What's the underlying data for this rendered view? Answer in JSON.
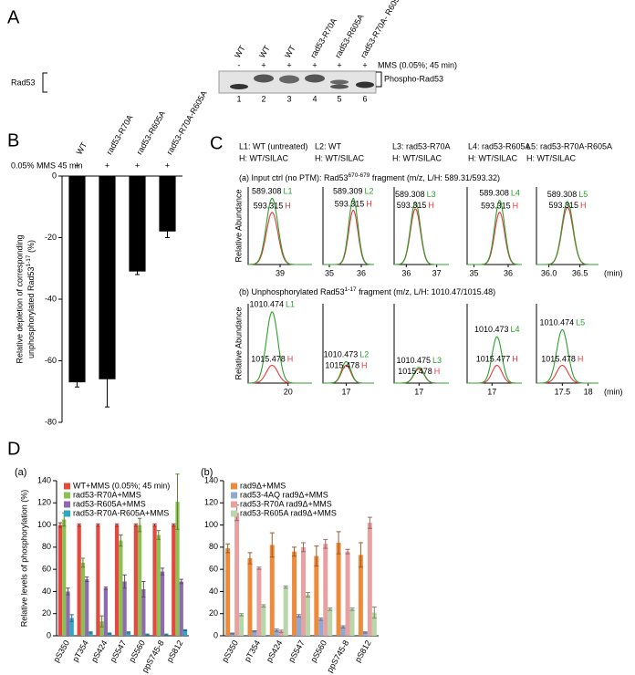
{
  "panel_a": {
    "label": "A",
    "lanes": [
      "WT",
      "WT",
      "WT",
      "rad53-R70A",
      "rad53-R605A",
      "rad53-R70A- R605A"
    ],
    "treatment": [
      "-",
      "+",
      "+",
      "+",
      "+",
      "+"
    ],
    "treatment_label": "MMS (0.05%; 45 min)",
    "lane_numbers": [
      1,
      2,
      3,
      4,
      5,
      6
    ],
    "left_label": "Rad53",
    "right_label": "Phospho-Rad53"
  },
  "panel_c": {
    "label": "C",
    "light_color": "#2ca02c",
    "heavy_color": "#e8383d",
    "legend": [
      {
        "light": "L1: WT (untreated)",
        "heavy": "H: WT/SILAC"
      },
      {
        "light": "L2: WT",
        "heavy": "H: WT/SILAC"
      },
      {
        "light": "L3: rad53-R70A",
        "heavy": "H: WT/SILAC"
      },
      {
        "light": "L4: rad53-R605A",
        "heavy": "H: WT/SILAC"
      },
      {
        "light": "L5: rad53-R70A-R605A",
        "heavy": "H: WT/SILAC"
      }
    ],
    "row_a": {
      "title": [
        "(a) Input ctrl (no PTM): Rad53",
        "670-679",
        " fragment (m/z, L/H: 589.31/593.32)"
      ],
      "ylabel": "Relative Abundance",
      "x_unit": "(min)",
      "plots": [
        {
          "xlim": [
            38.4,
            39.6
          ],
          "xticks": [
            39
          ],
          "peak_time": 38.85,
          "light_height": 95,
          "heavy_height": 75,
          "light_mz": "589.308",
          "light_tag": "L1",
          "heavy_mz": "593.315",
          "heavy_tag": "H"
        },
        {
          "xlim": [
            34.8,
            36.4
          ],
          "xticks": [
            35,
            36
          ],
          "peak_time": 35.75,
          "light_height": 95,
          "heavy_height": 78,
          "light_mz": "589.309",
          "light_tag": "L2",
          "heavy_mz": "593.315",
          "heavy_tag": "H"
        },
        {
          "xlim": [
            35.6,
            37.4
          ],
          "xticks": [
            36,
            37
          ],
          "peak_time": 36.3,
          "light_height": 90,
          "heavy_height": 80,
          "light_mz": "589.308",
          "light_tag": "L3",
          "heavy_mz": "593.315",
          "heavy_tag": "H"
        },
        {
          "xlim": [
            34.8,
            36.4
          ],
          "xticks": [
            35,
            36
          ],
          "peak_time": 35.75,
          "light_height": 92,
          "heavy_height": 75,
          "light_mz": "589.308",
          "light_tag": "L4",
          "heavy_mz": "593.315",
          "heavy_tag": "H"
        },
        {
          "xlim": [
            35.8,
            36.8
          ],
          "xticks": [
            {
              "value": 36,
              "label": "36.0"
            },
            36.5
          ],
          "peak_time": 36.3,
          "light_height": 90,
          "heavy_height": 82,
          "light_mz": "589.308",
          "light_tag": "L5",
          "heavy_mz": "593.315",
          "heavy_tag": "H"
        }
      ]
    },
    "row_b": {
      "title": [
        "(b) Unphosphorylated Rad53",
        "1-17",
        " fragment (m/z, L/H: 1010.47/1015.48)"
      ],
      "ylabel": "Relative Abundance",
      "x_unit": "(min)",
      "plots": [
        {
          "xlim": [
            19,
            20.6
          ],
          "xticks": [
            20
          ],
          "peak_time": 19.6,
          "light_height": 100,
          "heavy_height": 25,
          "light_mz": "1010.474",
          "light_tag": "L1",
          "heavy_mz": "1015.478",
          "heavy_tag": "H"
        },
        {
          "xlim": [
            16.5,
            17.6
          ],
          "xticks": [
            17
          ],
          "peak_time": 17.0,
          "light_height": 30,
          "heavy_height": 25,
          "light_mz": "1010.473",
          "light_tag": "L2",
          "heavy_mz": "1015.478",
          "heavy_tag": "H"
        },
        {
          "xlim": [
            16.5,
            17.6
          ],
          "xticks": [
            17
          ],
          "peak_time": 17.0,
          "light_height": 22,
          "heavy_height": 20,
          "light_mz": "1010.475",
          "light_tag": "L3",
          "heavy_mz": "1015.478",
          "heavy_tag": "H"
        },
        {
          "xlim": [
            16.5,
            17.6
          ],
          "xticks": [
            17
          ],
          "peak_time": 17.1,
          "light_height": 65,
          "heavy_height": 25,
          "light_mz": "1010.473",
          "light_tag": "L4",
          "heavy_mz": "1015.477",
          "heavy_tag": "H"
        },
        {
          "xlim": [
            17,
            18.2
          ],
          "xticks": [
            17.5,
            18
          ],
          "peak_time": 17.5,
          "light_height": 75,
          "heavy_height": 25,
          "light_mz": "1010.474",
          "light_tag": "L5",
          "heavy_mz": "1015.478",
          "heavy_tag": "H"
        }
      ]
    }
  },
  "chart_data": [
    {
      "type": "bar",
      "panel_label": "B",
      "categories": [
        "WT",
        "rad53-R70A",
        "rad53-R605A",
        "rad53-R70A-R605A"
      ],
      "treatment_label": "0.05% MMS 45 min",
      "treatment": [
        "+",
        "+",
        "+",
        "+"
      ],
      "values": [
        -67,
        -66,
        -31,
        -18
      ],
      "errors": [
        1.5,
        9,
        1,
        2
      ],
      "color": "#000000",
      "ylim": [
        -80,
        0
      ],
      "yticks": [
        0,
        -20,
        -40,
        -60,
        -80
      ],
      "ylabel": [
        "Relative depletion of corresponding",
        "unphosphorylated Rad53",
        "1-17",
        " (%)"
      ]
    },
    {
      "type": "bar",
      "panel_label": "D",
      "subpanel_label": "(a)",
      "ylabel": "Relative levels of phosphorylation (%)",
      "categories": [
        "pS350",
        "pT354",
        "pS424",
        "pS547",
        "pS560",
        "ppS745-8",
        "pS812"
      ],
      "ylim": [
        0,
        140
      ],
      "yticks": [
        0,
        20,
        40,
        60,
        80,
        100,
        120,
        140
      ],
      "series": [
        {
          "name": "WT+MMS (0.05%; 45 min)",
          "color": "#e5483e",
          "values": [
            100,
            100,
            100,
            100,
            100,
            100,
            100
          ],
          "errors": [
            2,
            1,
            1,
            1,
            1,
            1,
            1
          ]
        },
        {
          "name": "rad53-R70A+MMS",
          "color": "#8cc152",
          "values": [
            105,
            66,
            13,
            86,
            100,
            91,
            121
          ],
          "errors": [
            6,
            4,
            5,
            5,
            6,
            4,
            25
          ]
        },
        {
          "name": "rad53-R605A+MMS",
          "color": "#8e6bb0",
          "values": [
            40,
            51,
            43,
            49,
            42,
            58,
            49
          ],
          "errors": [
            3,
            2,
            1,
            6,
            7,
            3,
            2
          ]
        },
        {
          "name": "rad53-R70A-R605A+MMS",
          "color": "#2aa9c5",
          "values": [
            16,
            3,
            2,
            3,
            1,
            1,
            5
          ],
          "errors": [
            3,
            0.5,
            0.5,
            0.5,
            0.5,
            0.5,
            0.5
          ]
        }
      ]
    },
    {
      "type": "bar",
      "subpanel_label": "(b)",
      "categories": [
        "pS350",
        "pT354",
        "pS424",
        "pS547",
        "pS560",
        "ppS745-8",
        "pS812"
      ],
      "ylim": [
        0,
        140
      ],
      "yticks": [
        0,
        20,
        40,
        60,
        80,
        100,
        120,
        140
      ],
      "series": [
        {
          "name": "rad9Δ+MMS",
          "color": "#ef8a3a",
          "values": [
            79,
            70,
            82,
            76,
            72,
            84,
            73
          ],
          "errors": [
            4,
            5,
            11,
            4,
            9,
            10,
            11
          ]
        },
        {
          "name": "rad53-4AQ rad9Δ+MMS",
          "color": "#8fa9d6",
          "values": [
            2,
            4,
            5,
            18,
            15,
            8,
            3
          ],
          "errors": [
            0.5,
            0.5,
            1,
            1,
            1,
            1,
            0.5
          ]
        },
        {
          "name": "rad53-R70A rad9Δ+MMS",
          "color": "#e8a0a0",
          "values": [
            111,
            61,
            4,
            80,
            83,
            76,
            102
          ],
          "errors": [
            7,
            1,
            1,
            4,
            4,
            2,
            5
          ]
        },
        {
          "name": "rad53-R605A rad9Δ+MMS",
          "color": "#b6d7a8",
          "values": [
            19,
            27,
            44,
            37,
            24,
            24,
            21
          ],
          "errors": [
            1,
            1,
            1,
            2,
            1,
            1,
            5
          ]
        }
      ]
    }
  ]
}
